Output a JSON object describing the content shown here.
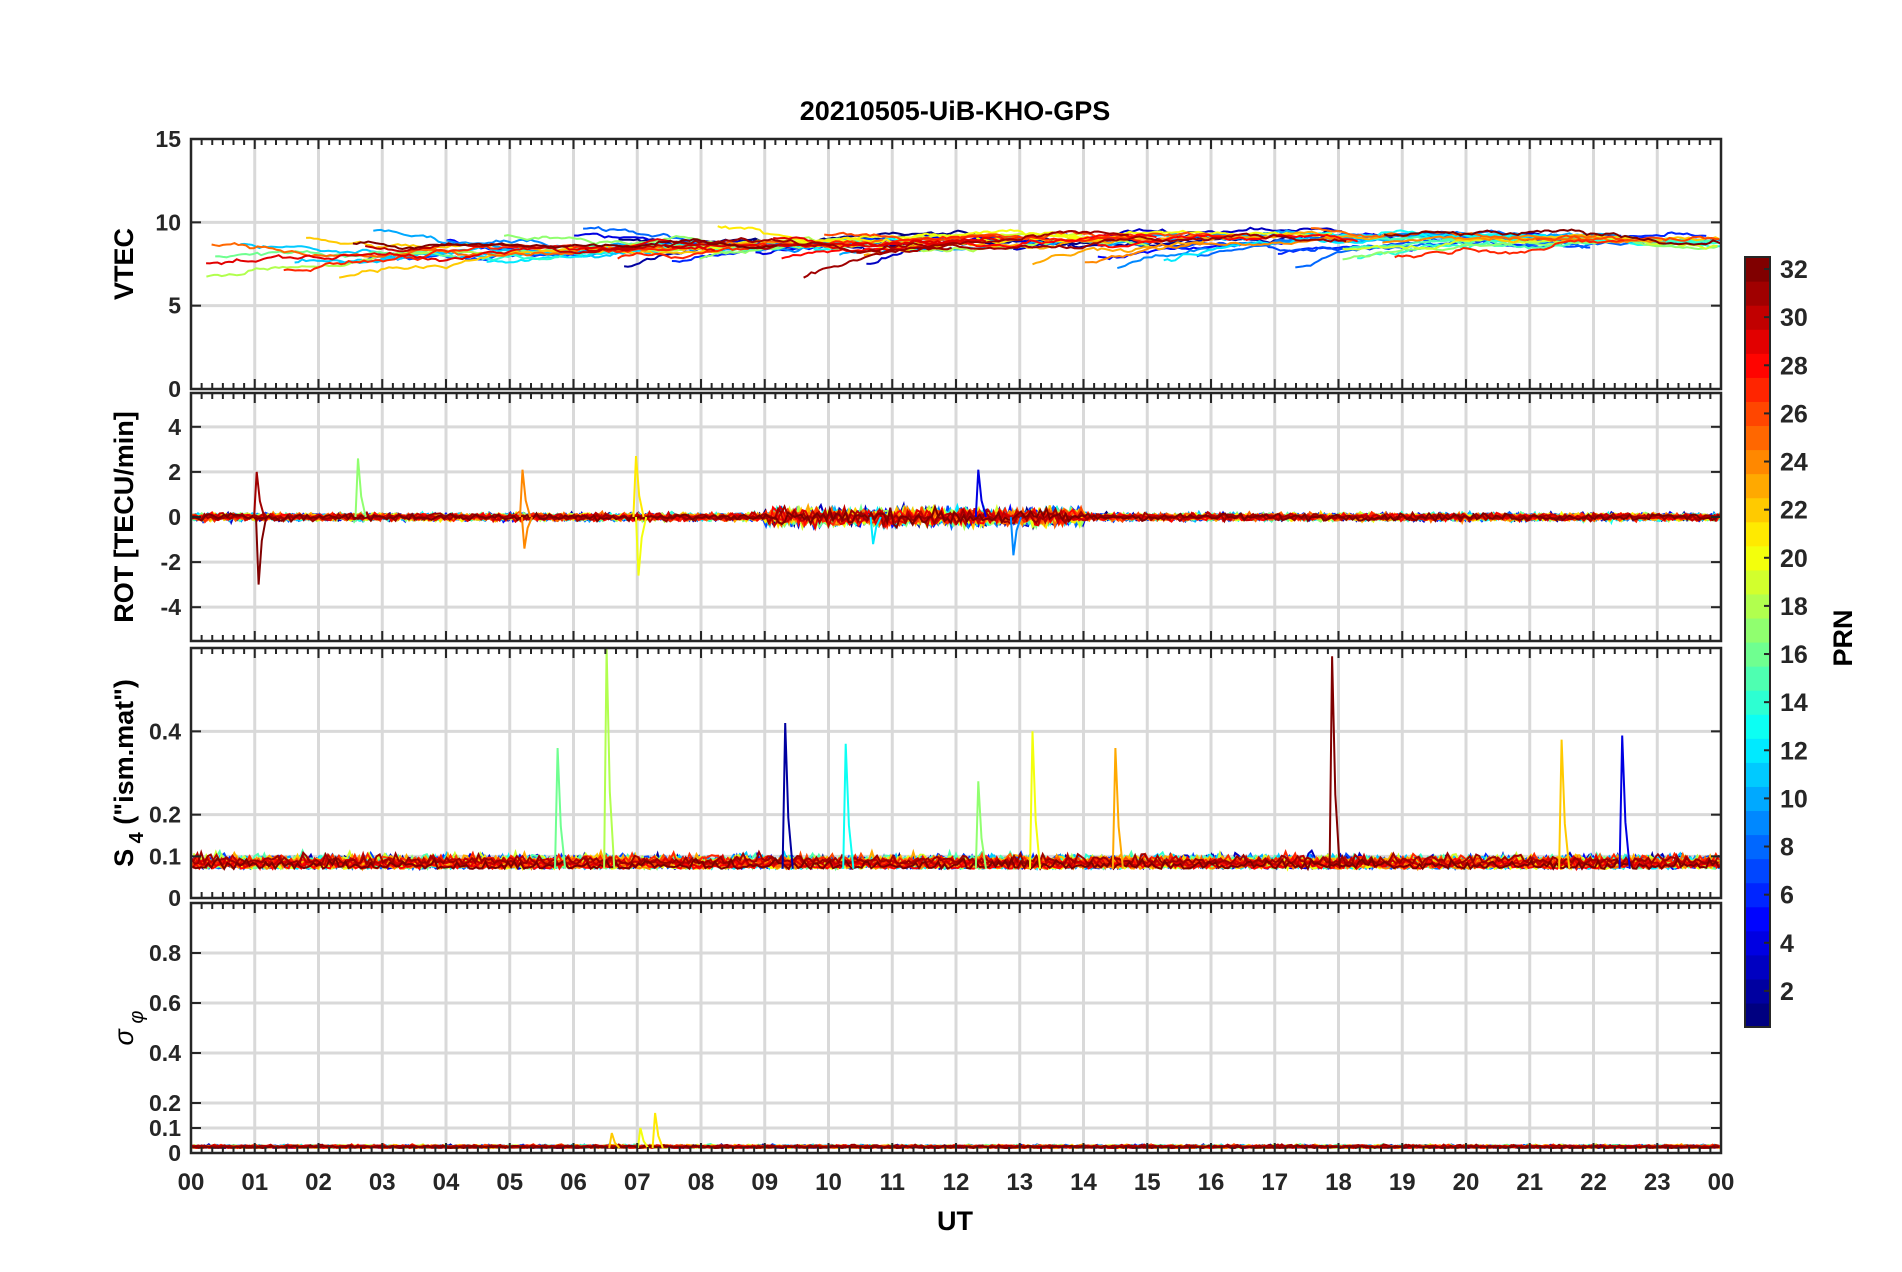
{
  "chart_data": {
    "type": "line",
    "title": "20210505-UiB-KHO-GPS",
    "xlabel": "UT",
    "x_tick_labels": [
      "00",
      "01",
      "02",
      "03",
      "04",
      "05",
      "06",
      "07",
      "08",
      "09",
      "10",
      "11",
      "12",
      "13",
      "14",
      "15",
      "16",
      "17",
      "18",
      "19",
      "20",
      "21",
      "22",
      "23",
      "00"
    ],
    "xlim": [
      0,
      24
    ],
    "grid": true,
    "panels": [
      {
        "id": "vtec",
        "ylabel": "VTEC",
        "ylim": [
          0,
          15
        ],
        "y_ticks": [
          0,
          5,
          10,
          15
        ],
        "y_tick_labels": [
          "0",
          "5",
          "10",
          "15"
        ],
        "baseline": 8.3,
        "noise": 0.35,
        "series_shape": "arcs"
      },
      {
        "id": "rot",
        "ylabel": "ROT [TECU/min]",
        "ylim": [
          -5.5,
          5.5
        ],
        "y_ticks": [
          -4,
          -2,
          0,
          2,
          4
        ],
        "y_tick_labels": [
          "-4",
          "-2",
          "0",
          "2",
          "4"
        ],
        "series_shape": "noise",
        "spikes": [
          {
            "t": 1.03,
            "v": 2.0,
            "prn": 31
          },
          {
            "t": 1.06,
            "v": -3.0,
            "prn": 32
          },
          {
            "t": 2.62,
            "v": 2.6,
            "prn": 17
          },
          {
            "t": 5.2,
            "v": 2.1,
            "prn": 24
          },
          {
            "t": 5.23,
            "v": -1.4,
            "prn": 24
          },
          {
            "t": 6.98,
            "v": 2.7,
            "prn": 21
          },
          {
            "t": 7.02,
            "v": -2.6,
            "prn": 20
          },
          {
            "t": 12.35,
            "v": 2.1,
            "prn": 4
          },
          {
            "t": 12.9,
            "v": -1.7,
            "prn": 9
          },
          {
            "t": 10.7,
            "v": -1.2,
            "prn": 12
          }
        ]
      },
      {
        "id": "s4",
        "ylabel": "S4 (\"ism.mat\")",
        "ylabel_main": "S",
        "ylabel_sub": "4",
        "ylabel_rest": " (\"ism.mat\")",
        "ylim": [
          0,
          0.6
        ],
        "y_ticks": [
          0,
          0.1,
          0.2,
          0.4
        ],
        "y_tick_labels": [
          "0",
          "0.1",
          "0.2",
          "0.4"
        ],
        "baseline": 0.07,
        "noise": 0.02,
        "series_shape": "noise",
        "spikes": [
          {
            "t": 5.75,
            "v": 0.36,
            "prn": 16
          },
          {
            "t": 6.52,
            "v": 0.6,
            "prn": 18
          },
          {
            "t": 9.32,
            "v": 0.42,
            "prn": 2
          },
          {
            "t": 10.27,
            "v": 0.37,
            "prn": 13
          },
          {
            "t": 12.35,
            "v": 0.28,
            "prn": 17
          },
          {
            "t": 13.2,
            "v": 0.4,
            "prn": 20
          },
          {
            "t": 14.5,
            "v": 0.36,
            "prn": 23
          },
          {
            "t": 17.9,
            "v": 0.58,
            "prn": 32
          },
          {
            "t": 21.5,
            "v": 0.38,
            "prn": 22
          },
          {
            "t": 22.45,
            "v": 0.39,
            "prn": 4
          }
        ]
      },
      {
        "id": "sigma",
        "ylabel": "σ φ",
        "ylabel_main": "σ",
        "ylabel_sub": "φ",
        "ylim": [
          0,
          1
        ],
        "y_ticks": [
          0,
          0.1,
          0.2,
          0.4,
          0.6,
          0.8
        ],
        "y_tick_labels": [
          "0",
          "0.1",
          "0.2",
          "0.4",
          "0.6",
          "0.8"
        ],
        "baseline": 0.02,
        "noise": 0.008,
        "series_shape": "noise",
        "spikes": [
          {
            "t": 7.28,
            "v": 0.16,
            "prn": 21
          },
          {
            "t": 7.05,
            "v": 0.1,
            "prn": 20
          },
          {
            "t": 6.6,
            "v": 0.08,
            "prn": 22
          }
        ]
      }
    ],
    "colorbar": {
      "label": "PRN",
      "range": [
        1,
        32
      ],
      "tick_labels": [
        "2",
        "4",
        "6",
        "8",
        "10",
        "12",
        "14",
        "16",
        "18",
        "20",
        "22",
        "24",
        "26",
        "28",
        "30",
        "32"
      ],
      "colormap": "jet"
    },
    "series_count": 32
  }
}
